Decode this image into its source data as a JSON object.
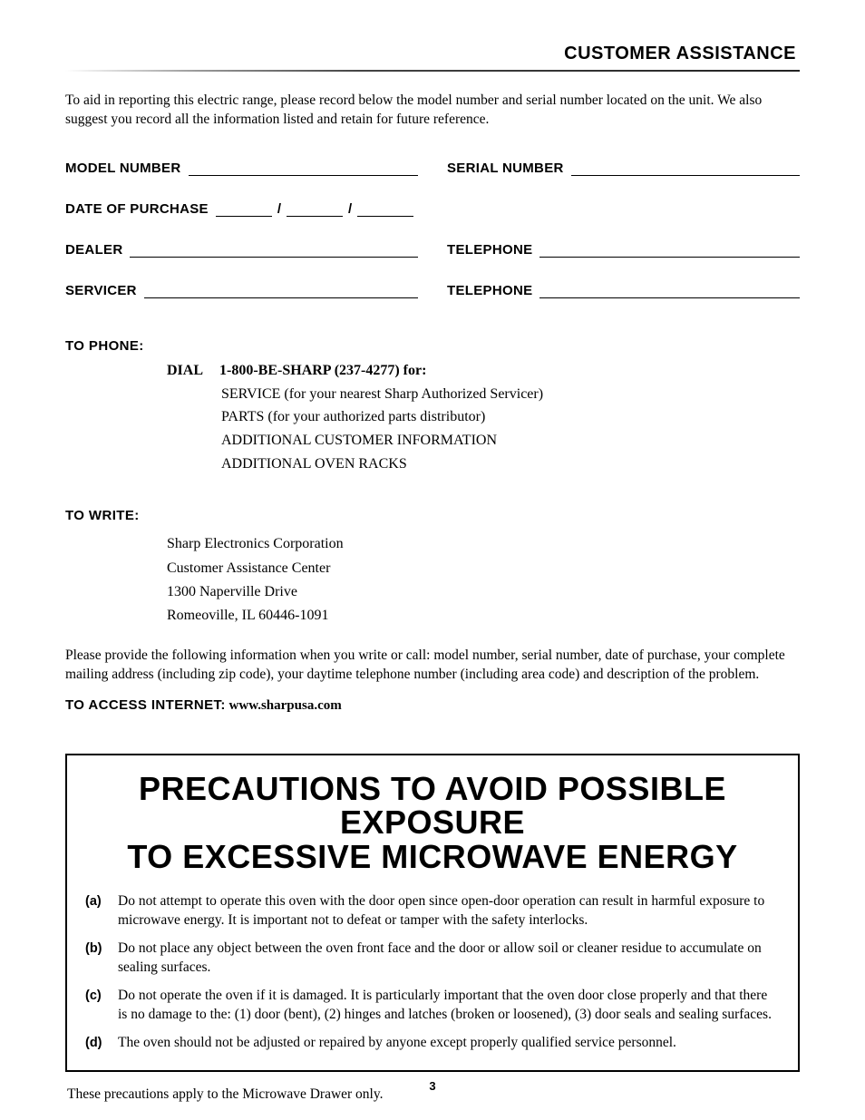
{
  "header": {
    "title": "CUSTOMER ASSISTANCE"
  },
  "intro": "To aid in reporting this electric range, please record below the model number and serial number located on the unit. We also suggest you record all the information listed and retain for future reference.",
  "form": {
    "model_number_label": "MODEL NUMBER",
    "serial_number_label": "SERIAL NUMBER",
    "date_of_purchase_label": "DATE OF PURCHASE",
    "dealer_label": "DEALER",
    "telephone_label": "TELEPHONE",
    "servicer_label": "SERVICER"
  },
  "phone": {
    "heading": "TO PHONE:",
    "dial_label": "DIAL",
    "dial_number": "1-800-BE-SHARP (237-4277) for:",
    "lines": [
      "SERVICE (for your nearest Sharp Authorized Servicer)",
      "PARTS (for your authorized parts distributor)",
      "ADDITIONAL CUSTOMER INFORMATION",
      "ADDITIONAL OVEN RACKS"
    ]
  },
  "write": {
    "heading": "TO WRITE:",
    "lines": [
      "Sharp Electronics Corporation",
      "Customer Assistance Center",
      "1300 Naperville Drive",
      "Romeoville, IL 60446-1091"
    ],
    "info": "Please provide the following information when you write or call: model number, serial number, date of purchase, your complete mailing address (including zip code), your daytime telephone number (including area code) and description of the problem."
  },
  "internet": {
    "label": "TO ACCESS INTERNET:",
    "url": "www.sharpusa.com"
  },
  "precautions": {
    "title_line1": "PRECAUTIONS TO AVOID POSSIBLE EXPOSURE",
    "title_line2": "TO EXCESSIVE MICROWAVE ENERGY",
    "items": [
      {
        "letter": "(a)",
        "text": "Do not attempt to operate this oven with the door open since open-door operation can result in harmful exposure to microwave energy. It is important not to defeat or tamper with the safety interlocks."
      },
      {
        "letter": "(b)",
        "text": "Do not place any object between the oven front face and the door or allow soil or cleaner residue to accumulate on sealing surfaces."
      },
      {
        "letter": "(c)",
        "text": "Do not operate the oven if it is damaged. It is particularly important that the oven door close properly and that there is no damage to the: (1) door (bent), (2) hinges and latches (broken or loosened), (3) door seals and sealing surfaces."
      },
      {
        "letter": "(d)",
        "text": "The oven should not be adjusted or repaired by anyone except properly qualified service personnel."
      }
    ]
  },
  "footnote": "These precautions apply to the Microwave Drawer only.",
  "page_number": "3"
}
